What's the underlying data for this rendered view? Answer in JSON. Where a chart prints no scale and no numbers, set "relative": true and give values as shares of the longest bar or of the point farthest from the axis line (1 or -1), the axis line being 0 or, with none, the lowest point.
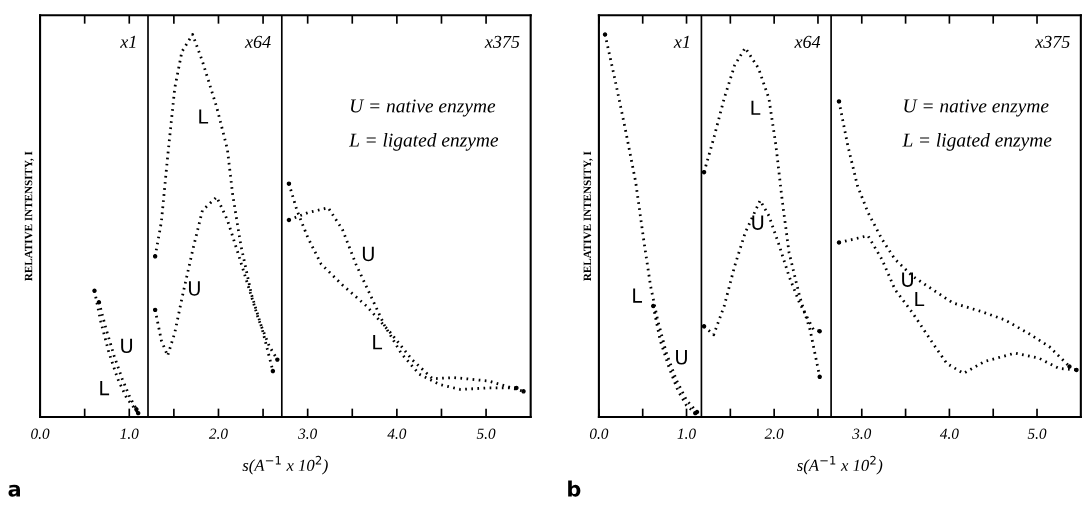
{
  "chart_data": [
    {
      "type": "line",
      "relative": true,
      "xlabel": "s(A$^{−1}$ x 10$^{2}$)",
      "ylabel": "RELATIVE INTENSITY, I",
      "xlim": [
        0,
        5.5
      ],
      "xticks": [
        {
          "value": 0,
          "label": "0.0"
        },
        {
          "value": 0.5,
          "label": null
        },
        {
          "value": 1,
          "label": "1.0"
        },
        {
          "value": 1.5,
          "label": null
        },
        {
          "value": 2,
          "label": "2.0"
        },
        {
          "value": 2.5,
          "label": null
        },
        {
          "value": 3,
          "label": "3.0"
        },
        {
          "value": 3.5,
          "label": null
        },
        {
          "value": 4,
          "label": "4.0"
        },
        {
          "value": 4.5,
          "label": null
        },
        {
          "value": 5,
          "label": "5.0"
        }
      ],
      "line_style": "dotted",
      "marker": "none",
      "grid": false,
      "series": [
        {
          "name": "U",
          "color": "#000000",
          "x": [
            0.66,
            0.74,
            0.83,
            0.92,
            1.0,
            1.08
          ],
          "values": [
            0.3,
            0.23,
            0.16,
            0.1,
            0.055,
            0.02
          ]
        },
        {
          "name": "L",
          "color": "#000000",
          "x": [
            0.61,
            0.68,
            0.77,
            0.87,
            0.97,
            1.1
          ],
          "values": [
            0.33,
            0.25,
            0.17,
            0.1,
            0.05,
            0.01
          ]
        },
        {
          "name": "U",
          "color": "#000000",
          "x": [
            1.29,
            1.36,
            1.43,
            1.51,
            1.59,
            1.71,
            1.82,
            1.98,
            2.1,
            2.21,
            2.33,
            2.45,
            2.57,
            2.66
          ],
          "values": [
            0.28,
            0.2,
            0.16,
            0.22,
            0.31,
            0.435,
            0.54,
            0.575,
            0.515,
            0.435,
            0.345,
            0.255,
            0.185,
            0.15
          ]
        },
        {
          "name": "L",
          "color": "#000000",
          "x": [
            1.29,
            1.36,
            1.43,
            1.51,
            1.59,
            1.71,
            1.82,
            1.98,
            2.1,
            2.16,
            2.25,
            2.37,
            2.49,
            2.61
          ],
          "values": [
            0.42,
            0.51,
            0.68,
            0.86,
            0.955,
            1.0,
            0.93,
            0.81,
            0.7,
            0.58,
            0.45,
            0.32,
            0.23,
            0.12
          ]
        },
        {
          "name": "U",
          "color": "#000000",
          "x": [
            2.79,
            3.0,
            3.23,
            3.39,
            3.54,
            3.7,
            3.86,
            4.05,
            4.25,
            4.48,
            4.71,
            5.03,
            5.34
          ],
          "values": [
            0.515,
            0.534,
            0.547,
            0.49,
            0.4,
            0.32,
            0.24,
            0.166,
            0.112,
            0.085,
            0.072,
            0.076,
            0.076
          ]
        },
        {
          "name": "L",
          "color": "#000000",
          "x": [
            2.79,
            2.88,
            3.0,
            3.15,
            3.39,
            3.66,
            3.93,
            4.17,
            4.4,
            4.64,
            5.03,
            5.42
          ],
          "values": [
            0.61,
            0.54,
            0.47,
            0.4,
            0.345,
            0.29,
            0.22,
            0.15,
            0.1,
            0.103,
            0.094,
            0.067
          ]
        }
      ],
      "ref_lines": [
        {
          "axis": "x",
          "value": 1.21
        },
        {
          "axis": "x",
          "value": 2.71
        }
      ],
      "annotations": [
        "x1",
        "x64",
        "x375",
        "U = native enzyme",
        "L = ligated enzyme",
        "a"
      ]
    },
    {
      "type": "line",
      "relative": true,
      "xlabel": "s(A$^{−1}$ x 10$^{2}$)",
      "ylabel": "RELATIVE INTENSITY, I",
      "xlim": [
        0,
        5.5
      ],
      "xticks": [
        {
          "value": 0,
          "label": "0.0"
        },
        {
          "value": 0.5,
          "label": null
        },
        {
          "value": 1,
          "label": "1.0"
        },
        {
          "value": 1.5,
          "label": null
        },
        {
          "value": 2,
          "label": "2.0"
        },
        {
          "value": 2.5,
          "label": null
        },
        {
          "value": 3,
          "label": "3.0"
        },
        {
          "value": 3.5,
          "label": null
        },
        {
          "value": 4,
          "label": "4.0"
        },
        {
          "value": 4.5,
          "label": null
        },
        {
          "value": 5,
          "label": "5.0"
        }
      ],
      "line_style": "dotted",
      "marker": "none",
      "grid": false,
      "series": [
        {
          "name": "U",
          "color": "#000000",
          "x": [
            0.62,
            0.7,
            0.8,
            0.9,
            1.0,
            1.1
          ],
          "values": [
            0.29,
            0.2,
            0.13,
            0.07,
            0.03,
            0.01
          ]
        },
        {
          "name": "L",
          "color": "#000000",
          "x": [
            0.07,
            0.18,
            0.3,
            0.42,
            0.51,
            0.59,
            0.67,
            0.77,
            0.885,
            1.0,
            1.12
          ],
          "values": [
            1.0,
            0.886,
            0.754,
            0.614,
            0.465,
            0.342,
            0.254,
            0.167,
            0.096,
            0.044,
            0.013
          ]
        },
        {
          "name": "U",
          "color": "#000000",
          "x": [
            1.2,
            1.31,
            1.43,
            1.55,
            1.67,
            1.84,
            1.94,
            2.06,
            2.17,
            2.29,
            2.45,
            2.52
          ],
          "values": [
            0.237,
            0.215,
            0.29,
            0.395,
            0.482,
            0.566,
            0.526,
            0.447,
            0.368,
            0.298,
            0.228,
            0.224
          ]
        },
        {
          "name": "L",
          "color": "#000000",
          "x": [
            1.2,
            1.31,
            1.43,
            1.55,
            1.67,
            1.82,
            1.94,
            2.02,
            2.09,
            2.17,
            2.29,
            2.41,
            2.52
          ],
          "values": [
            0.64,
            0.728,
            0.833,
            0.92,
            0.965,
            0.912,
            0.833,
            0.71,
            0.57,
            0.43,
            0.316,
            0.228,
            0.105
          ]
        },
        {
          "name": "U",
          "color": "#000000",
          "x": [
            2.74,
            2.91,
            3.07,
            3.23,
            3.38,
            3.58,
            3.81,
            3.97,
            4.16,
            4.4,
            4.75,
            5.02,
            5.25,
            5.45
          ],
          "values": [
            0.456,
            0.465,
            0.474,
            0.412,
            0.333,
            0.272,
            0.193,
            0.14,
            0.114,
            0.145,
            0.167,
            0.154,
            0.127,
            0.123
          ]
        },
        {
          "name": "L",
          "color": "#000000",
          "x": [
            2.74,
            2.84,
            2.95,
            3.07,
            3.23,
            3.38,
            3.58,
            3.81,
            4.04,
            4.36,
            4.63,
            4.9,
            5.14,
            5.37
          ],
          "values": [
            0.825,
            0.71,
            0.605,
            0.535,
            0.465,
            0.412,
            0.368,
            0.333,
            0.298,
            0.276,
            0.254,
            0.219,
            0.184,
            0.132
          ]
        }
      ],
      "ref_lines": [
        {
          "axis": "x",
          "value": 1.17
        },
        {
          "axis": "x",
          "value": 2.65
        }
      ],
      "annotations": [
        "x1",
        "x64",
        "x375",
        "U = native enzyme",
        "L = ligated enzyme",
        "b"
      ]
    }
  ]
}
